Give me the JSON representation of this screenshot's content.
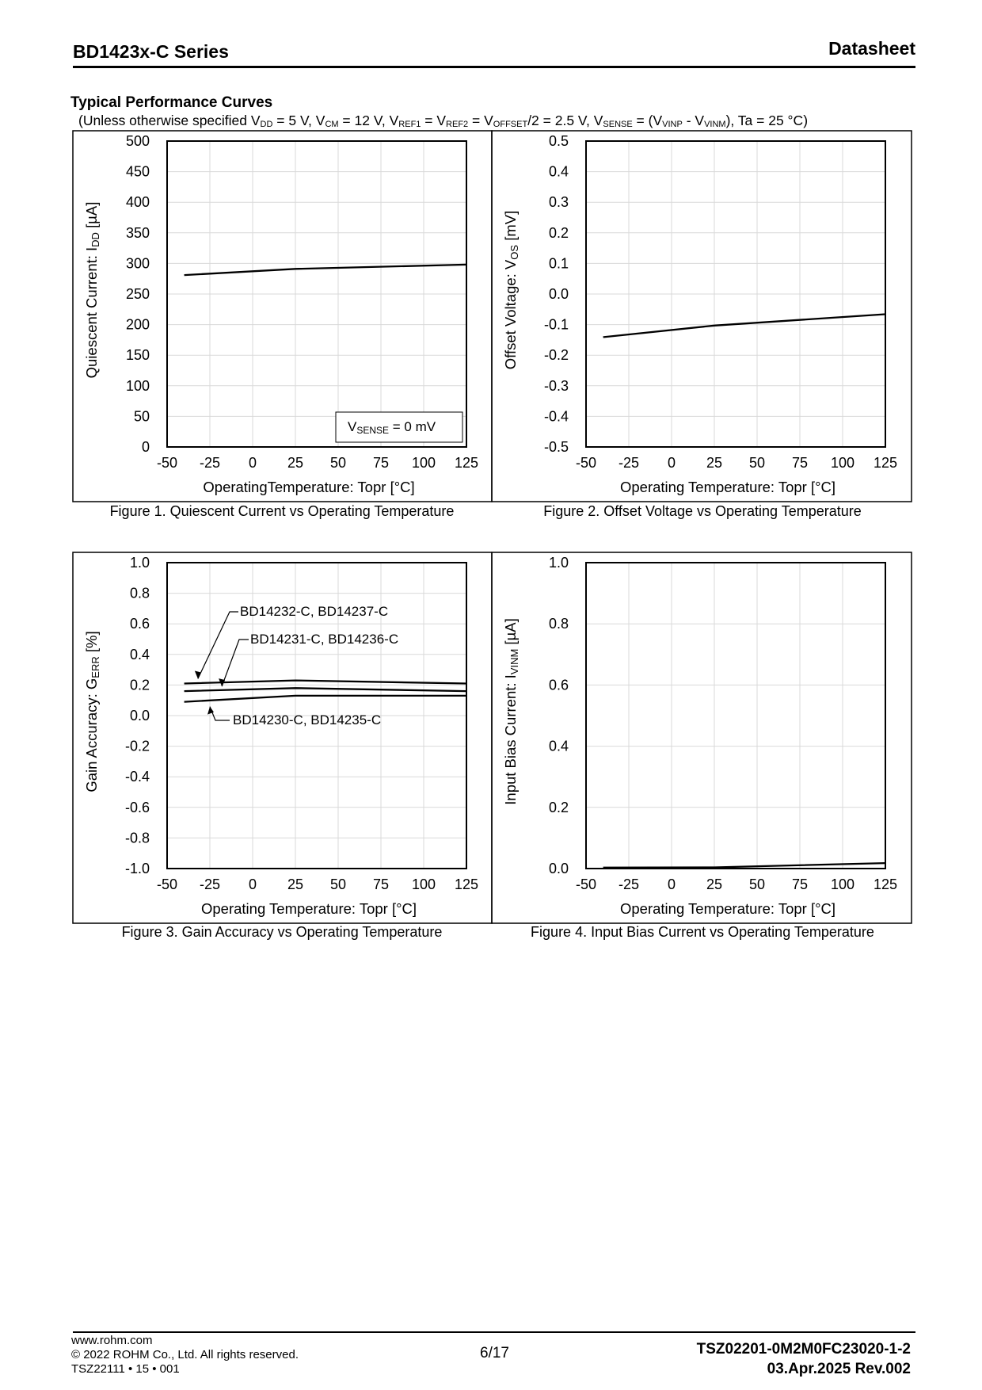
{
  "header": {
    "title": "BD1423x-C Series",
    "doc_type": "Datasheet"
  },
  "section": {
    "title": "Typical Performance Curves",
    "conditions": [
      {
        "t": "(Unless otherwise specified V"
      },
      {
        "s": "DD"
      },
      {
        "t": " = 5 V, V"
      },
      {
        "s": "CM"
      },
      {
        "t": " = 12 V, V"
      },
      {
        "s": "REF1"
      },
      {
        "t": " = V"
      },
      {
        "s": "REF2"
      },
      {
        "t": " = V"
      },
      {
        "s": "OFFSET"
      },
      {
        "t": "/2 = 2.5 V, V"
      },
      {
        "s": "SENSE"
      },
      {
        "t": " = (V"
      },
      {
        "s": "VINP"
      },
      {
        "t": " - V"
      },
      {
        "s": "VINM"
      },
      {
        "t": "), Ta = 25 °C)"
      }
    ]
  },
  "chart_data": [
    {
      "type": "line",
      "title": "Figure 1. Quiescent Current vs Operating Temperature",
      "xlabel": "OperatingTemperature: Topr [°C]",
      "ylabel": [
        {
          "t": "Quiescent Current: I"
        },
        {
          "s": "DD"
        },
        {
          "t": " [µA]"
        }
      ],
      "xlim": [
        -50,
        125
      ],
      "ylim": [
        0,
        500
      ],
      "x_ticks": [
        -50,
        -25,
        0,
        25,
        50,
        75,
        100,
        125
      ],
      "y_ticks": [
        0,
        50,
        100,
        150,
        200,
        250,
        300,
        350,
        400,
        450,
        500
      ],
      "y_decimals": 0,
      "grid": true,
      "series": [
        {
          "x": [
            -40,
            25,
            125
          ],
          "y": [
            281,
            291,
            298
          ]
        }
      ],
      "annotations": [
        {
          "parts": [
            {
              "t": "V"
            },
            {
              "s": "SENSE"
            },
            {
              "t": " = 0 mV"
            }
          ],
          "boxed": true
        }
      ]
    },
    {
      "type": "line",
      "title": "Figure 2. Offset Voltage vs Operating Temperature",
      "xlabel": "Operating Temperature: Topr [°C]",
      "ylabel": [
        {
          "t": "Offset Voltage: V"
        },
        {
          "s": "OS"
        },
        {
          "t": " [mV]"
        }
      ],
      "xlim": [
        -50,
        125
      ],
      "ylim": [
        -0.5,
        0.5
      ],
      "x_ticks": [
        -50,
        -25,
        0,
        25,
        50,
        75,
        100,
        125
      ],
      "y_ticks": [
        -0.5,
        -0.4,
        -0.3,
        -0.2,
        -0.1,
        0.0,
        0.1,
        0.2,
        0.3,
        0.4,
        0.5
      ],
      "y_decimals": 1,
      "grid": true,
      "series": [
        {
          "x": [
            -40,
            25,
            125
          ],
          "y": [
            -0.141,
            -0.103,
            -0.066
          ]
        }
      ]
    },
    {
      "type": "line",
      "title": "Figure 3. Gain Accuracy vs Operating Temperature",
      "xlabel": "Operating Temperature: Topr [°C]",
      "ylabel": [
        {
          "t": "Gain Accuracy: G"
        },
        {
          "s": "ERR"
        },
        {
          "t": " [%]"
        }
      ],
      "xlim": [
        -50,
        125
      ],
      "ylim": [
        -1.0,
        1.0
      ],
      "x_ticks": [
        -50,
        -25,
        0,
        25,
        50,
        75,
        100,
        125
      ],
      "y_ticks": [
        -1.0,
        -0.8,
        -0.6,
        -0.4,
        -0.2,
        0.0,
        0.2,
        0.4,
        0.6,
        0.8,
        1.0
      ],
      "y_decimals": 1,
      "grid": true,
      "series": [
        {
          "name": "BD14232-C, BD14237-C",
          "x": [
            -40,
            25,
            125
          ],
          "y": [
            0.21,
            0.23,
            0.21
          ]
        },
        {
          "name": "BD14231-C, BD14236-C",
          "x": [
            -40,
            25,
            125
          ],
          "y": [
            0.16,
            0.18,
            0.16
          ]
        },
        {
          "name": "BD14230-C, BD14235-C",
          "x": [
            -40,
            25,
            125
          ],
          "y": [
            0.09,
            0.13,
            0.13
          ]
        }
      ]
    },
    {
      "type": "line",
      "title": "Figure 4. Input Bias Current vs Operating Temperature",
      "xlabel": "Operating Temperature: Topr [°C]",
      "ylabel": [
        {
          "t": "Input Bias Current: I"
        },
        {
          "s": "VINM"
        },
        {
          "t": " [µA]"
        }
      ],
      "xlim": [
        -50,
        125
      ],
      "ylim": [
        0.0,
        1.0
      ],
      "x_ticks": [
        -50,
        -25,
        0,
        25,
        50,
        75,
        100,
        125
      ],
      "y_ticks": [
        0.0,
        0.2,
        0.4,
        0.6,
        0.8,
        1.0
      ],
      "y_decimals": 1,
      "grid": true,
      "series": [
        {
          "x": [
            -40,
            25,
            125
          ],
          "y": [
            0.003,
            0.004,
            0.018
          ]
        }
      ]
    }
  ],
  "footer": {
    "website": "www.rohm.com",
    "copyright": "© 2022 ROHM Co., Ltd. All rights reserved.",
    "form_code": "TSZ22111 • 15 • 001",
    "page": "6/17",
    "doc_number": "TSZ02201-0M2M0FC23020-1-2",
    "date_rev": "03.Apr.2025 Rev.002"
  }
}
